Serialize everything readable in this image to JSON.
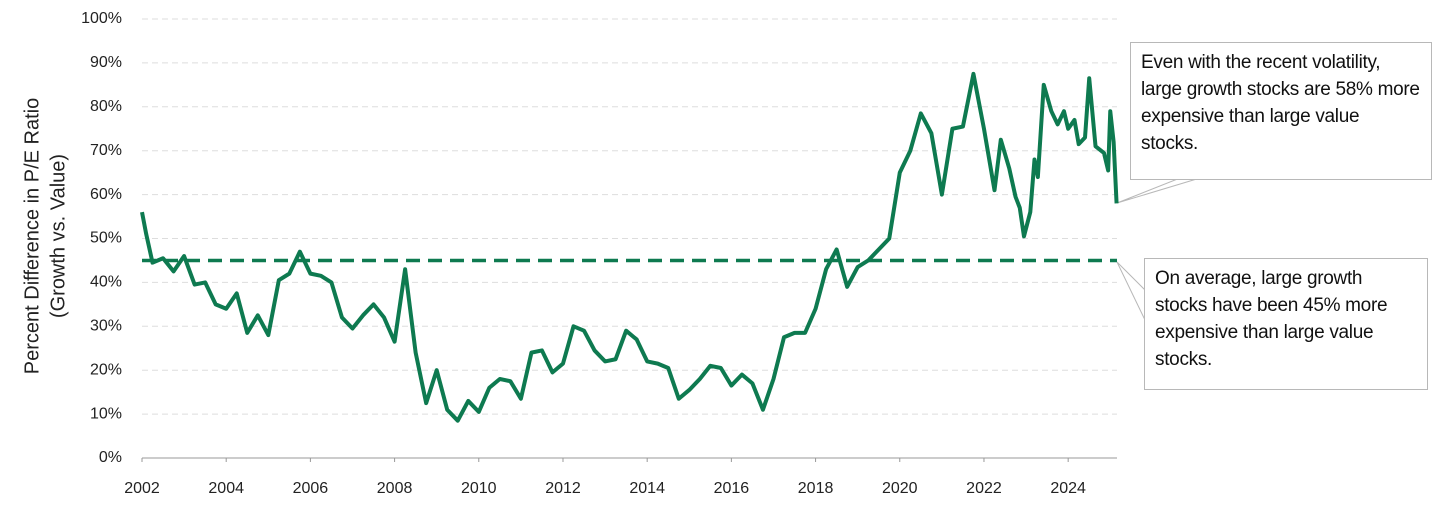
{
  "chart_data": {
    "type": "line",
    "ylabel": [
      "Percent Difference in P/E Ratio",
      "(Growth vs. Value)"
    ],
    "x": [
      2002.0,
      2002.1,
      2002.25,
      2002.5,
      2002.75,
      2003.0,
      2003.25,
      2003.5,
      2003.75,
      2004.0,
      2004.25,
      2004.5,
      2004.75,
      2005.0,
      2005.25,
      2005.5,
      2005.75,
      2006.0,
      2006.25,
      2006.5,
      2006.75,
      2007.0,
      2007.25,
      2007.5,
      2007.75,
      2008.0,
      2008.25,
      2008.5,
      2008.75,
      2009.0,
      2009.25,
      2009.5,
      2009.75,
      2010.0,
      2010.25,
      2010.5,
      2010.75,
      2011.0,
      2011.25,
      2011.5,
      2011.75,
      2012.0,
      2012.25,
      2012.5,
      2012.75,
      2013.0,
      2013.25,
      2013.5,
      2013.75,
      2014.0,
      2014.25,
      2014.5,
      2014.75,
      2015.0,
      2015.25,
      2015.5,
      2015.75,
      2016.0,
      2016.25,
      2016.5,
      2016.75,
      2017.0,
      2017.25,
      2017.5,
      2017.75,
      2018.0,
      2018.25,
      2018.5,
      2018.75,
      2019.0,
      2019.25,
      2019.5,
      2019.75,
      2020.0,
      2020.25,
      2020.5,
      2020.75,
      2021.0,
      2021.25,
      2021.5,
      2021.75,
      2022.0,
      2022.25,
      2022.4,
      2022.6,
      2022.75,
      2022.85,
      2022.95,
      2023.1,
      2023.2,
      2023.28,
      2023.42,
      2023.6,
      2023.75,
      2023.9,
      2024.0,
      2024.15,
      2024.25,
      2024.4,
      2024.5,
      2024.65,
      2024.85,
      2024.95,
      2025.0,
      2025.08,
      2025.15
    ],
    "values": [
      56,
      51,
      44.5,
      45.5,
      42.5,
      46,
      39.5,
      40,
      35,
      34,
      37.5,
      28.5,
      32.5,
      28,
      40.5,
      42,
      47,
      42,
      41.5,
      40,
      32,
      29.5,
      32.5,
      35,
      32,
      26.5,
      43,
      24,
      12.5,
      20,
      11,
      8.5,
      13,
      10.5,
      16,
      18,
      17.5,
      13.5,
      24,
      24.5,
      19.5,
      21.5,
      30,
      29,
      24.5,
      22,
      22.5,
      29,
      27,
      22,
      21.5,
      20.5,
      13.5,
      15.5,
      18,
      21,
      20.5,
      16.5,
      19,
      17,
      11,
      18,
      27.5,
      28.5,
      28.5,
      34,
      43,
      47.5,
      39,
      43.5,
      45,
      47.5,
      50,
      65,
      70,
      78.5,
      74,
      60,
      75,
      75.5,
      87.5,
      75,
      61,
      72.5,
      66,
      59.5,
      57,
      50.5,
      56,
      68,
      64,
      85,
      79,
      76,
      79,
      75,
      77,
      71.5,
      73,
      86.5,
      71,
      69.5,
      65.5,
      79,
      72,
      58
    ],
    "color": "#0e7a50",
    "reference_line": {
      "value": 45
    },
    "xlim": [
      2002,
      2025.16
    ],
    "xticks": [
      2002,
      2004,
      2006,
      2008,
      2010,
      2012,
      2014,
      2016,
      2018,
      2020,
      2022,
      2024
    ],
    "ylim": [
      0,
      100
    ],
    "yticks": [
      {
        "value": 0,
        "label": "0%"
      },
      {
        "value": 10,
        "label": "10%"
      },
      {
        "value": 20,
        "label": "20%"
      },
      {
        "value": 30,
        "label": "30%"
      },
      {
        "value": 40,
        "label": "40%"
      },
      {
        "value": 50,
        "label": "50%"
      },
      {
        "value": 60,
        "label": "60%"
      },
      {
        "value": 70,
        "label": "70%"
      },
      {
        "value": 80,
        "label": "80%"
      },
      {
        "value": 90,
        "label": "90%"
      },
      {
        "value": 100,
        "label": "100%"
      }
    ],
    "grid": true,
    "annotations": [
      {
        "text": "Even with the recent volatility, large growth stocks are 58% more expensive than large value stocks."
      },
      {
        "text": "On average, large growth stocks have been 45% more expensive than large value stocks."
      }
    ]
  }
}
